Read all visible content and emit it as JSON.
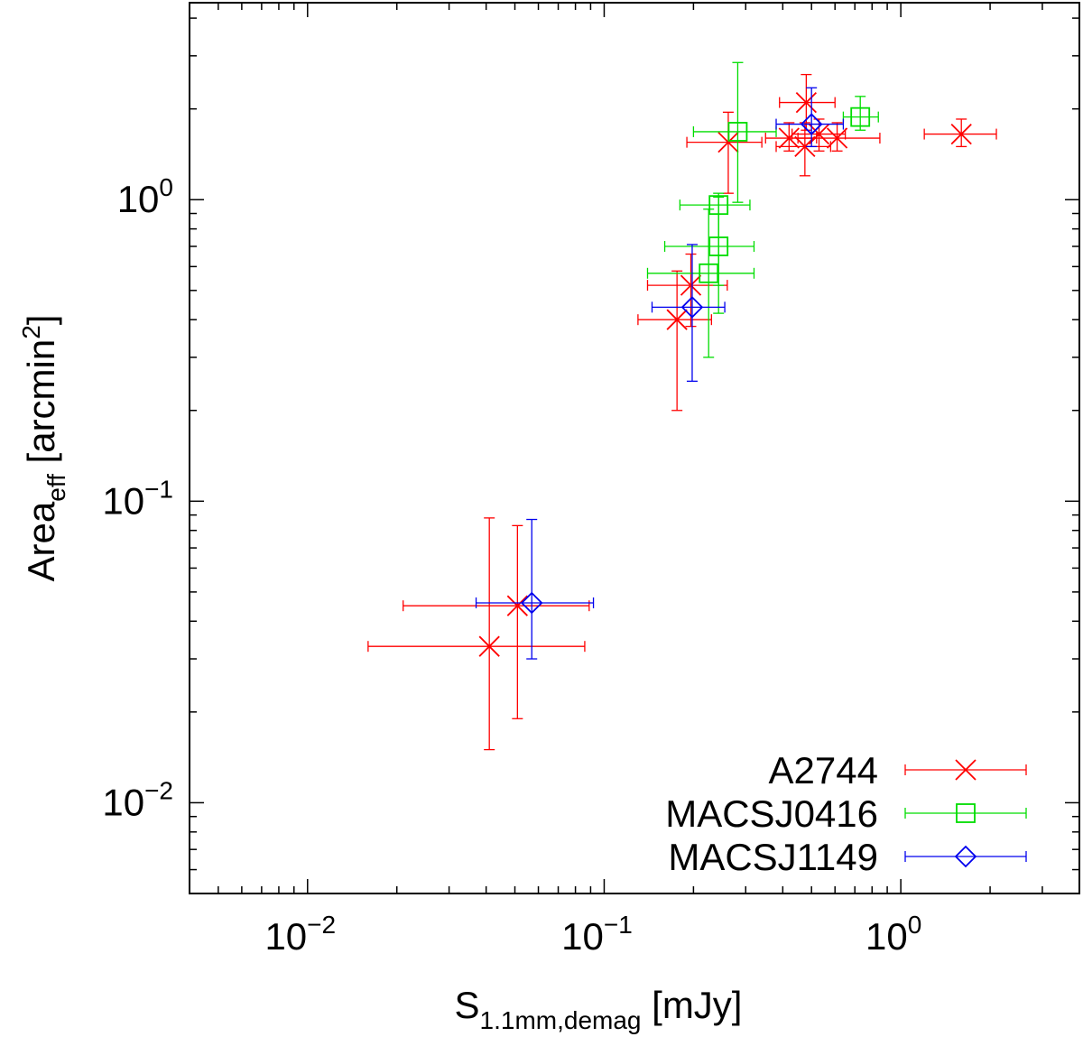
{
  "chart_data": {
    "type": "scatter",
    "x_scale": "log",
    "y_scale": "log",
    "xlim": [
      0.004,
      4.0
    ],
    "ylim": [
      0.005,
      4.5
    ],
    "x_ticks": [
      {
        "value": 0.01,
        "base": "10",
        "exp": "−2"
      },
      {
        "value": 0.1,
        "base": "10",
        "exp": "−1"
      },
      {
        "value": 1,
        "base": "10",
        "exp": "0"
      }
    ],
    "y_ticks": [
      {
        "value": 0.01,
        "base": "10",
        "exp": "−2"
      },
      {
        "value": 0.1,
        "base": "10",
        "exp": "−1"
      },
      {
        "value": 1,
        "base": "10",
        "exp": "0"
      }
    ],
    "xlabel": {
      "main": "S",
      "sub": "1.1mm,demag",
      "unit": " [mJy]"
    },
    "ylabel": {
      "main": "Area",
      "sub": "eff",
      "unit": " [arcmin",
      "sup": "2",
      "close": "]"
    },
    "legend_position": "bottom-right",
    "grid": false,
    "series": [
      {
        "name": "A2744",
        "color": "#ff0000",
        "marker": "cross",
        "points": [
          {
            "x": 0.041,
            "y": 0.033,
            "xerr": [
              0.016,
              0.086
            ],
            "yerr": [
              0.015,
              0.088
            ]
          },
          {
            "x": 0.051,
            "y": 0.045,
            "xerr": [
              0.021,
              0.089
            ],
            "yerr": [
              0.019,
              0.083
            ]
          },
          {
            "x": 0.176,
            "y": 0.4,
            "xerr": [
              0.13,
              0.23
            ],
            "yerr": [
              0.2,
              0.58
            ]
          },
          {
            "x": 0.196,
            "y": 0.52,
            "xerr": [
              0.14,
              0.26
            ],
            "yerr": [
              0.38,
              0.66
            ]
          },
          {
            "x": 0.262,
            "y": 1.55,
            "xerr": [
              0.19,
              0.34
            ],
            "yerr": [
              1.05,
              1.95
            ]
          },
          {
            "x": 0.42,
            "y": 1.6,
            "xerr": [
              0.35,
              0.52
            ],
            "yerr": [
              1.45,
              1.8
            ]
          },
          {
            "x": 0.475,
            "y": 1.5,
            "xerr": [
              0.38,
              0.58
            ],
            "yerr": [
              1.2,
              1.8
            ]
          },
          {
            "x": 0.48,
            "y": 2.1,
            "xerr": [
              0.39,
              0.6
            ],
            "yerr": [
              1.7,
              2.6
            ]
          },
          {
            "x": 0.53,
            "y": 1.65,
            "xerr": [
              0.43,
              0.65
            ],
            "yerr": [
              1.45,
              1.85
            ]
          },
          {
            "x": 0.61,
            "y": 1.6,
            "xerr": [
              0.45,
              0.85
            ],
            "yerr": [
              1.45,
              1.8
            ]
          },
          {
            "x": 1.6,
            "y": 1.65,
            "xerr": [
              1.2,
              2.1
            ],
            "yerr": [
              1.5,
              1.85
            ]
          }
        ]
      },
      {
        "name": "MACSJ0416",
        "color": "#00dd00",
        "marker": "square",
        "points": [
          {
            "x": 0.225,
            "y": 0.57,
            "xerr": [
              0.14,
              0.32
            ],
            "yerr": [
              0.3,
              0.93
            ]
          },
          {
            "x": 0.243,
            "y": 0.7,
            "xerr": [
              0.16,
              0.32
            ],
            "yerr": [
              0.42,
              1.02
            ]
          },
          {
            "x": 0.243,
            "y": 0.96,
            "xerr": [
              0.18,
              0.31
            ],
            "yerr": [
              0.52,
              1.05
            ]
          },
          {
            "x": 0.282,
            "y": 1.68,
            "xerr": [
              0.2,
              0.38
            ],
            "yerr": [
              0.98,
              2.85
            ]
          },
          {
            "x": 0.73,
            "y": 1.88,
            "xerr": [
              0.64,
              0.84
            ],
            "yerr": [
              1.7,
              2.2
            ]
          }
        ]
      },
      {
        "name": "MACSJ1149",
        "color": "#0000ee",
        "marker": "diamond",
        "points": [
          {
            "x": 0.057,
            "y": 0.046,
            "xerr": [
              0.037,
              0.092
            ],
            "yerr": [
              0.03,
              0.087
            ]
          },
          {
            "x": 0.198,
            "y": 0.44,
            "xerr": [
              0.145,
              0.255
            ],
            "yerr": [
              0.25,
              0.71
            ]
          },
          {
            "x": 0.5,
            "y": 1.78,
            "xerr": [
              0.38,
              0.64
            ],
            "yerr": [
              1.5,
              2.35
            ]
          }
        ]
      }
    ]
  }
}
